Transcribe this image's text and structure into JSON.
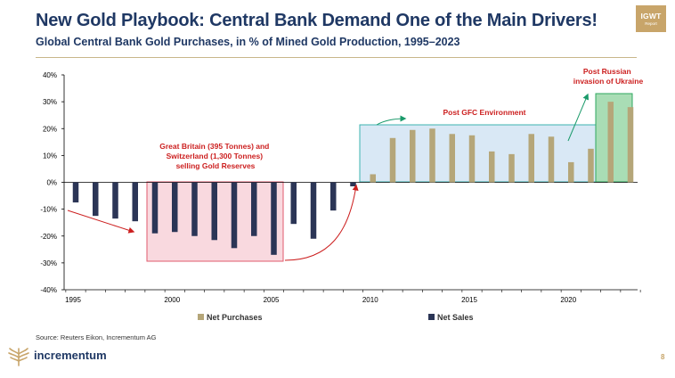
{
  "header": {
    "title": "New Gold Playbook: Central Bank Demand One of the Main Drivers!",
    "subtitle": "Global Central Bank Gold Purchases, in % of Mined Gold Production, 1995–2023",
    "badge_line1": "IGWT",
    "badge_line2": "Report"
  },
  "footer": {
    "source": "Source: Reuters Eikon, Incrementum AG",
    "logo_text": "incrementum",
    "page_number": "8"
  },
  "colors": {
    "net_purchases": "#b5a679",
    "net_sales": "#2b3556",
    "title": "#1f3864",
    "accent_red": "#cc1f1f",
    "accent_green": "#1a9a6a",
    "box_red": "#f9d9df",
    "box_blue": "#d9e8f5",
    "box_green": "#a9ddb5"
  },
  "chart_data": {
    "type": "bar",
    "title": "",
    "xlabel": "",
    "ylabel": "",
    "ylim": [
      -40,
      40
    ],
    "yticks": [
      -40,
      -30,
      -20,
      -10,
      0,
      10,
      20,
      30,
      40
    ],
    "ytick_labels": [
      "-40%",
      "-30%",
      "-20%",
      "-10%",
      "0%",
      "10%",
      "20%",
      "30%",
      "40%"
    ],
    "xticks": [
      1995,
      2000,
      2005,
      2010,
      2015,
      2020
    ],
    "x": [
      1995,
      1996,
      1997,
      1998,
      1999,
      2000,
      2001,
      2002,
      2003,
      2004,
      2005,
      2006,
      2007,
      2008,
      2009,
      2010,
      2011,
      2012,
      2013,
      2014,
      2015,
      2016,
      2017,
      2018,
      2019,
      2020,
      2021,
      2022,
      2023
    ],
    "values": [
      -7.5,
      -12.5,
      -13.5,
      -14.5,
      -19,
      -18.5,
      -20,
      -21.5,
      -24.5,
      -20,
      -27,
      -15.5,
      -21,
      -10.5,
      -1.5,
      3,
      16.5,
      19.5,
      20,
      18,
      17.5,
      11.5,
      10.5,
      18,
      17,
      7.5,
      12.5,
      30,
      28
    ],
    "series": [
      {
        "name": "Net Purchases",
        "color": "#b5a679",
        "rule": "value >= 0"
      },
      {
        "name": "Net Sales",
        "color": "#2b3556",
        "rule": "value < 0"
      }
    ],
    "legend_position": "bottom",
    "annotations": [
      {
        "text": "Great Britain (395 Tonnes) and Switzerland (1,300 Tonnes) selling Gold Reserves",
        "color": "#cc1f1f"
      },
      {
        "text": "Post GFC Environment",
        "color": "#cc1f1f"
      },
      {
        "text": "Post Russian invasion of Ukraine",
        "color": "#cc1f1f"
      }
    ]
  }
}
